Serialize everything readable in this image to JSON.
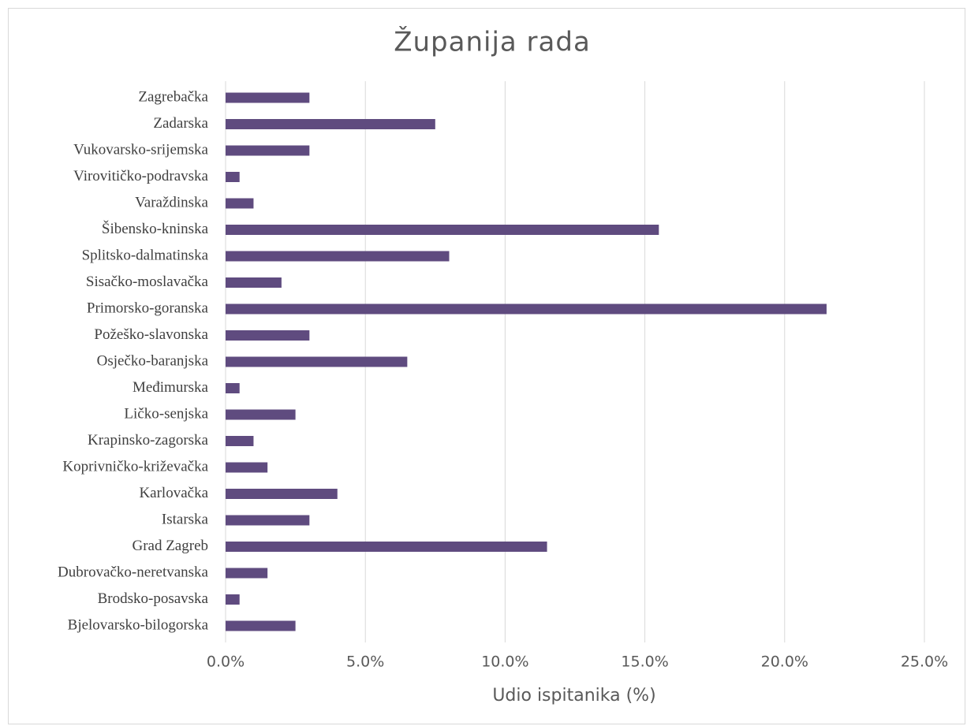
{
  "chart_data": {
    "type": "bar",
    "orientation": "horizontal",
    "title": "Županija rada",
    "x_label": "Udio ispitanika (%)",
    "categories": [
      "Zagrebačka",
      "Zadarska",
      "Vukovarsko-srijemska",
      "Virovitičko-podravska",
      "Varaždinska",
      "Šibensko-kninska",
      "Splitsko-dalmatinska",
      "Sisačko-moslavačka",
      "Primorsko-goranska",
      "Požeško-slavonska",
      "Osječko-baranjska",
      "Međimurska",
      "Ličko-senjska",
      "Krapinsko-zagorska",
      "Koprivničko-križevačka",
      "Karlovačka",
      "Istarska",
      "Grad Zagreb",
      "Dubrovačko-neretvanska",
      "Brodsko-posavska",
      "Bjelovarsko-bilogorska"
    ],
    "values": [
      3.0,
      7.5,
      3.0,
      0.5,
      1.0,
      15.5,
      8.0,
      2.0,
      21.5,
      3.0,
      6.5,
      0.5,
      2.5,
      1.0,
      1.5,
      4.0,
      3.0,
      11.5,
      1.5,
      0.5,
      2.5
    ],
    "color": "#5f4b7f",
    "xlim": [
      0,
      25
    ],
    "xticks": [
      {
        "value": 0,
        "label": "0.0%"
      },
      {
        "value": 5,
        "label": "5.0%"
      },
      {
        "value": 10,
        "label": "10.0%"
      },
      {
        "value": 15,
        "label": "15.0%"
      },
      {
        "value": 20,
        "label": "20.0%"
      },
      {
        "value": 25,
        "label": "25.0%"
      }
    ],
    "grid": true
  }
}
